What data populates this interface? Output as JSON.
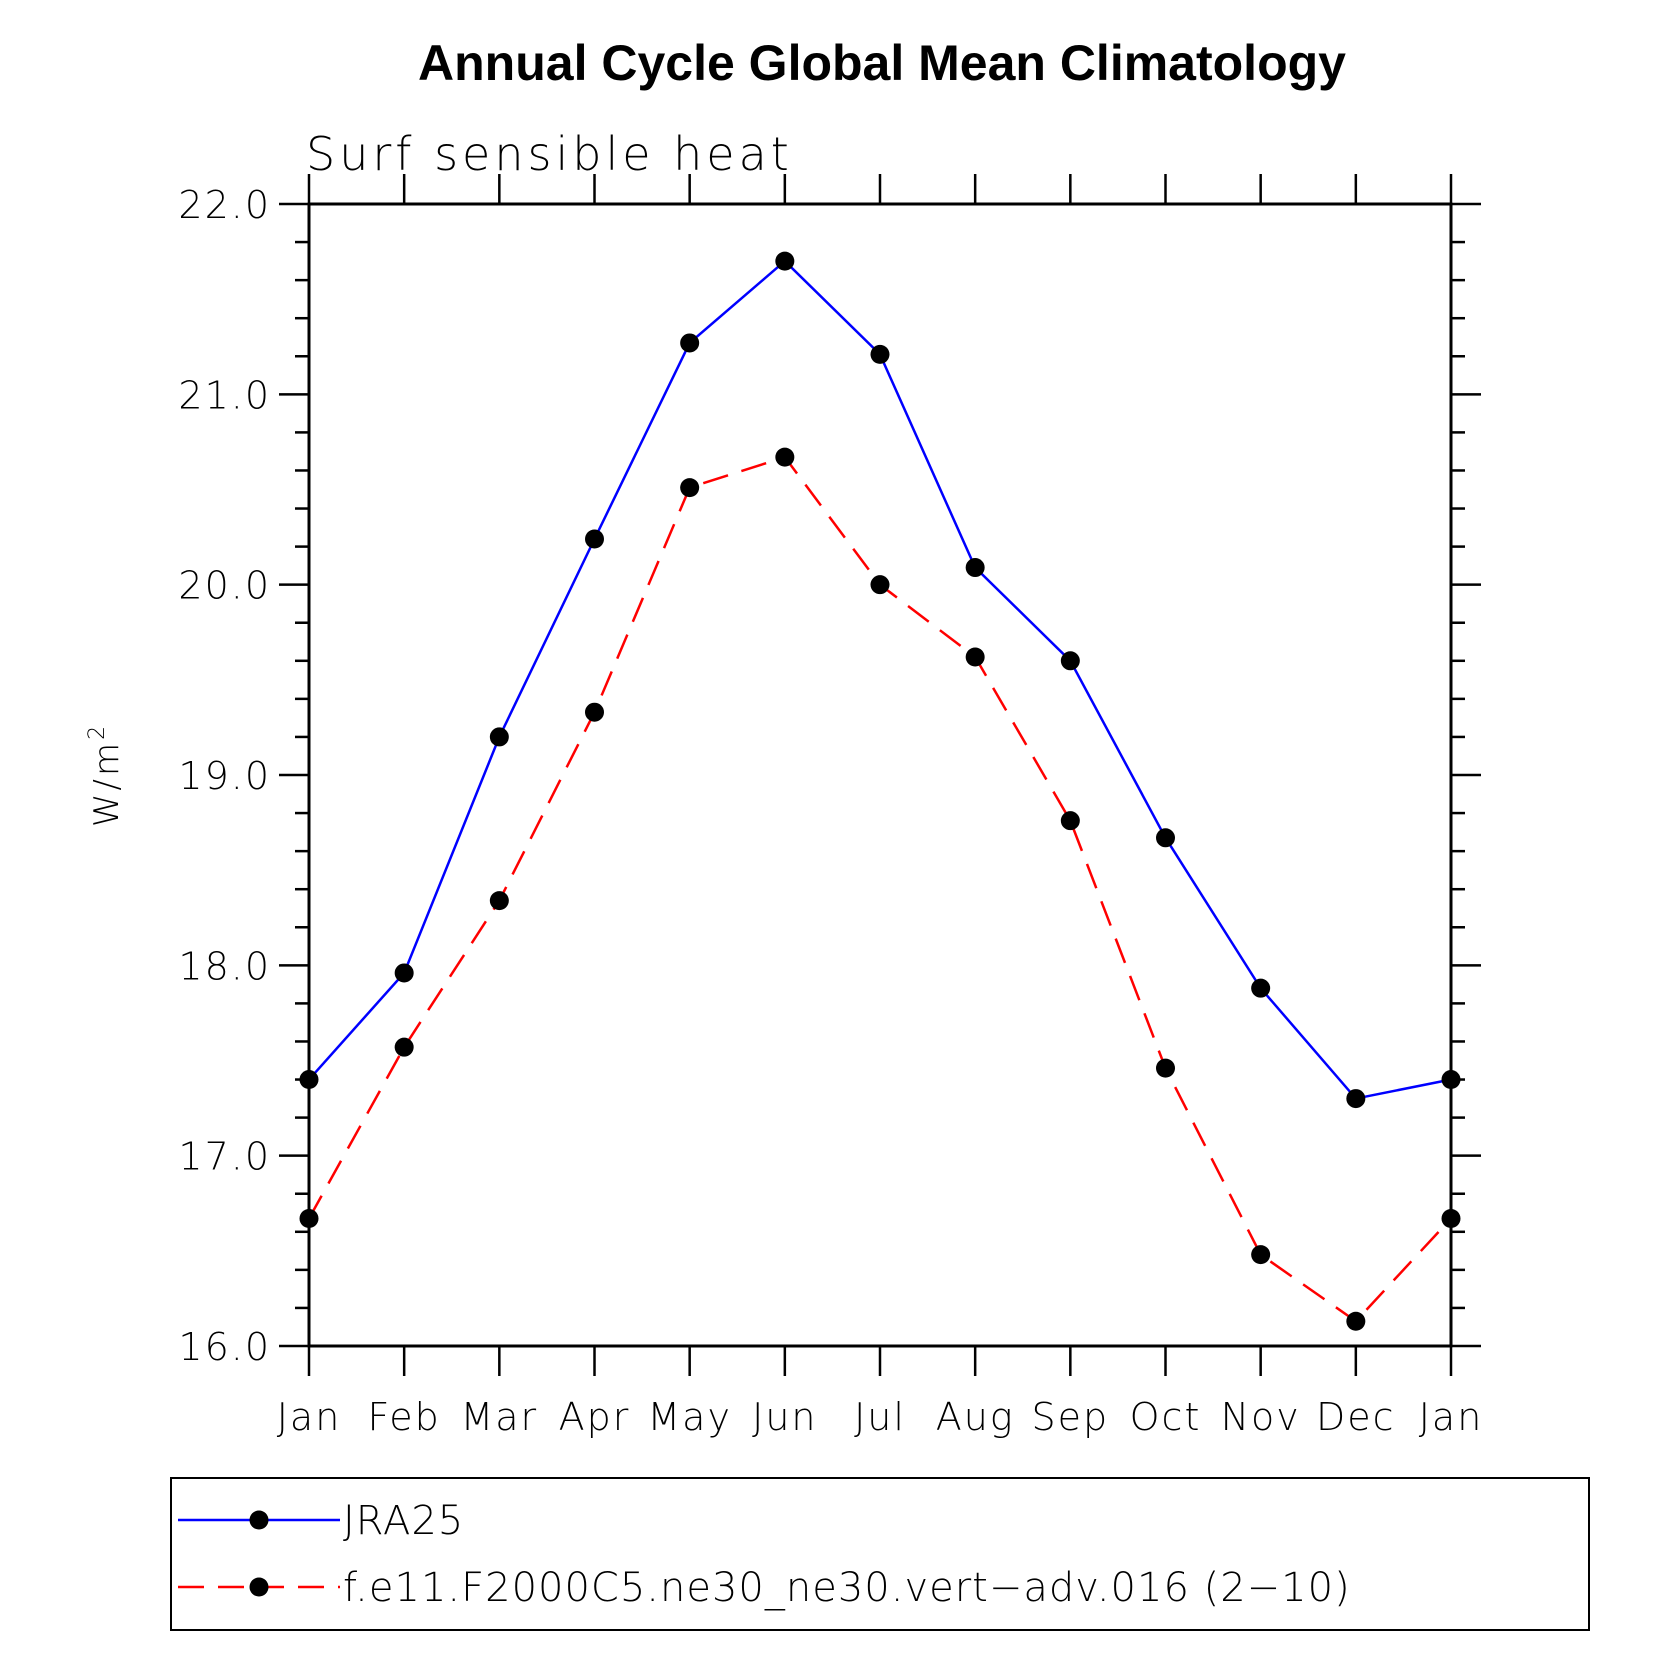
{
  "chart_data": {
    "type": "line",
    "title": "Annual Cycle Global Mean Climatology",
    "subtitle": "Surf sensible heat",
    "ylabel": "W/m",
    "ylabel_superscript": "2",
    "xlabel": "",
    "ylim": [
      16.0,
      22.0
    ],
    "yticks": [
      "16.0",
      "17.0",
      "18.0",
      "19.0",
      "20.0",
      "21.0",
      "22.0"
    ],
    "categories": [
      "Jan",
      "Feb",
      "Mar",
      "Apr",
      "May",
      "Jun",
      "Jul",
      "Aug",
      "Sep",
      "Oct",
      "Nov",
      "Dec",
      "Jan"
    ],
    "series": [
      {
        "name": "JRA25",
        "color": "#0000ff",
        "dash": "solid",
        "values": [
          17.4,
          17.96,
          19.2,
          20.24,
          21.27,
          21.7,
          21.21,
          20.09,
          19.6,
          18.67,
          17.88,
          17.3,
          17.4
        ]
      },
      {
        "name": "f.e11.F2000C5.ne30_ne30.vert−adv.016 (2−10)",
        "color": "#ff0000",
        "dash": "dashed",
        "values": [
          16.67,
          17.57,
          18.34,
          19.33,
          20.51,
          20.67,
          20.0,
          19.62,
          18.76,
          17.46,
          16.48,
          16.13,
          16.67
        ]
      }
    ],
    "legend_position": "bottom",
    "grid": false
  }
}
